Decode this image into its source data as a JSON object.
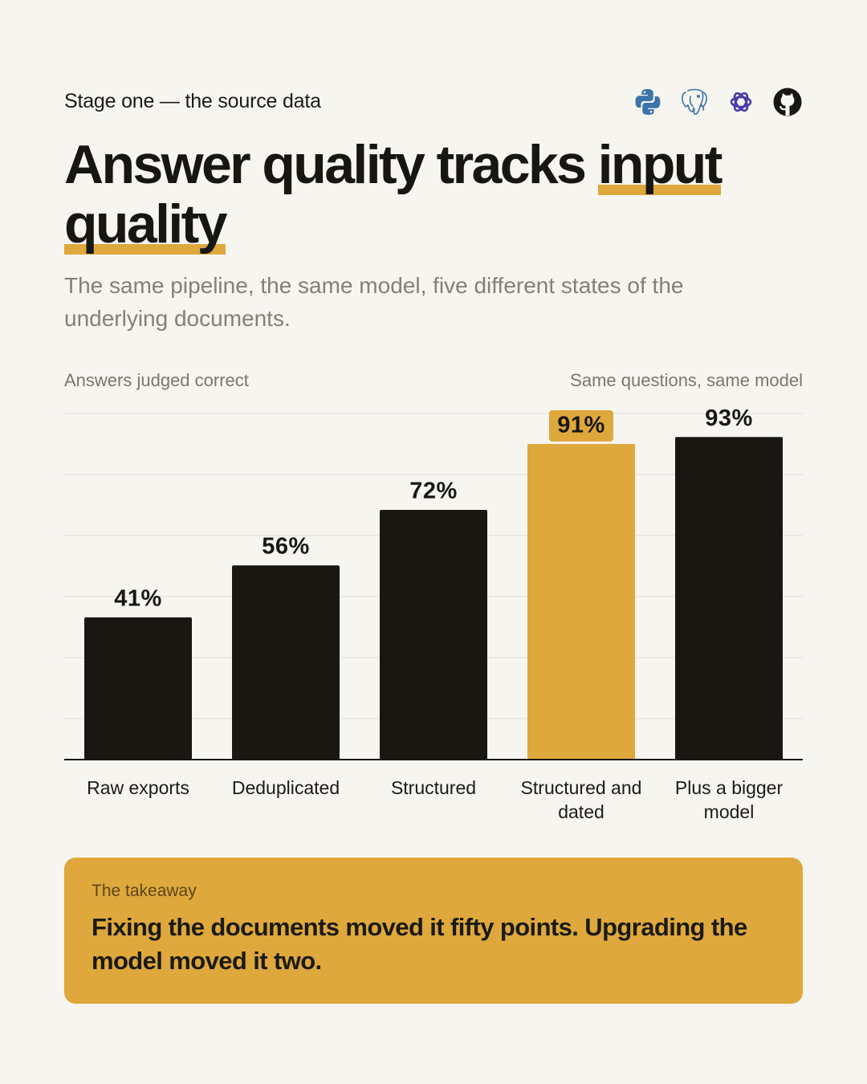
{
  "eyebrow": "Stage one — the source data",
  "icons": [
    "python-icon",
    "postgresql-icon",
    "openai-icon",
    "github-icon"
  ],
  "headline": {
    "plain": "Answer quality tracks ",
    "highlight": "input quality"
  },
  "subtitle": "The same pipeline, the same model, five different states of the underlying documents.",
  "chart_data": {
    "type": "bar",
    "title": "",
    "ylabel": "Answers judged correct",
    "note": "Same questions, same model",
    "categories": [
      "Raw exports",
      "Deduplicated",
      "Structured",
      "Structured and dated",
      "Plus a bigger model"
    ],
    "values": [
      41,
      56,
      72,
      91,
      93
    ],
    "value_labels": [
      "41%",
      "56%",
      "72%",
      "91%",
      "93%"
    ],
    "highlight_index": 3,
    "ylim": [
      0,
      100
    ],
    "grid": true,
    "colors": {
      "bar": "#181712",
      "highlight": "#dfa83c",
      "grid": "#e2dfd8",
      "baseline": "#181712"
    }
  },
  "takeaway": {
    "label": "The takeaway",
    "text": "Fixing the documents moved it fifty points. Upgrading the model moved it two."
  },
  "colors": {
    "background": "#f7f5f0",
    "accent": "#dfa83c",
    "ink": "#181712",
    "muted": "#838079"
  }
}
